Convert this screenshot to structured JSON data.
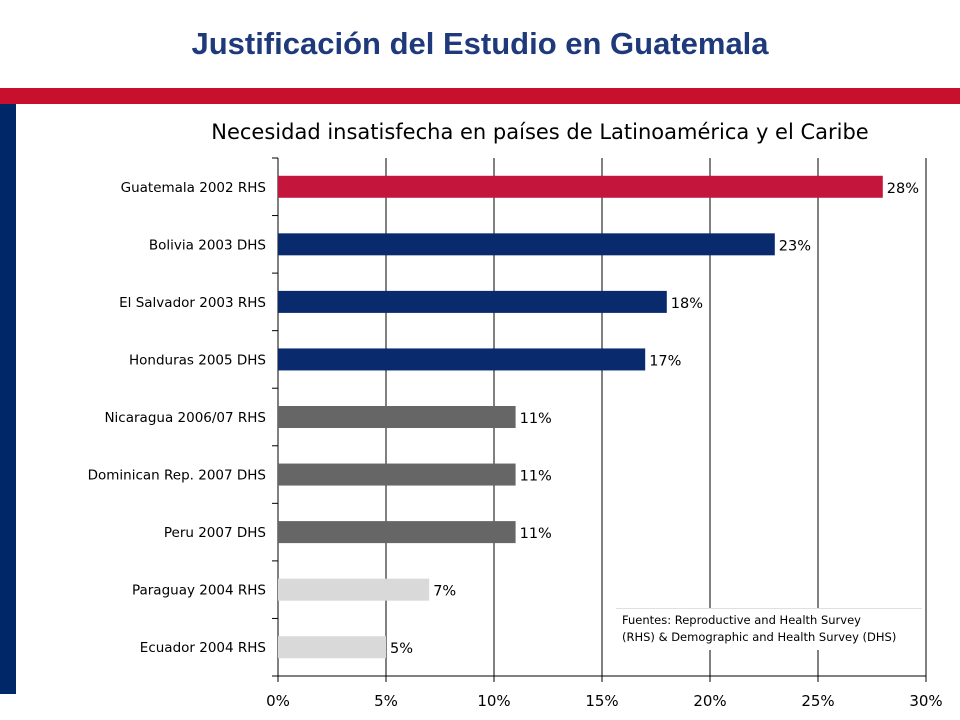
{
  "slide": {
    "title": "Justificación del Estudio en Guatemala"
  },
  "colors": {
    "title": "#1F3A7A",
    "red_rule": "#C8102E",
    "left_bar": "#002868"
  },
  "chart_data": {
    "type": "bar",
    "orientation": "horizontal",
    "title": "Necesidad insatisfecha en países de Latinoamérica y el Caribe",
    "categories": [
      "Guatemala 2002 RHS",
      "Bolivia 2003 DHS",
      "El Salvador 2003 RHS",
      "Honduras 2005 DHS",
      "Nicaragua 2006/07 RHS",
      "Dominican Rep. 2007 DHS",
      "Peru 2007 DHS",
      "Paraguay 2004 RHS",
      "Ecuador 2004 RHS"
    ],
    "values": [
      28,
      23,
      18,
      17,
      11,
      11,
      11,
      7,
      5
    ],
    "value_labels": [
      "28%",
      "23%",
      "18%",
      "17%",
      "11%",
      "11%",
      "11%",
      "7%",
      "5%"
    ],
    "bar_colors": [
      "#C4163C",
      "#0A2A6E",
      "#0A2A6E",
      "#0A2A6E",
      "#666666",
      "#666666",
      "#666666",
      "#D9D9D9",
      "#D9D9D9"
    ],
    "xlim": [
      0,
      30
    ],
    "xticks": [
      0,
      5,
      10,
      15,
      20,
      25,
      30
    ],
    "xtick_labels": [
      "0%",
      "5%",
      "10%",
      "15%",
      "20%",
      "25%",
      "30%"
    ],
    "grid": "vertical",
    "xlabel": "",
    "ylabel": "",
    "legend": "none"
  },
  "source_note": {
    "line1": "Fuentes: Reproductive and Health Survey",
    "line2": "(RHS) & Demographic and Health Survey (DHS)"
  }
}
